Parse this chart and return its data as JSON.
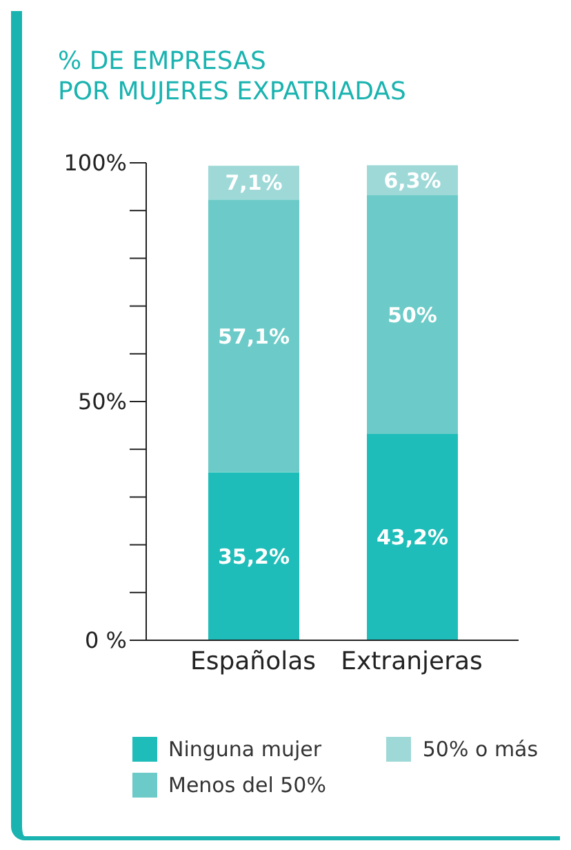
{
  "chart_data": {
    "type": "bar",
    "title": "% DE EMPRESAS\nPOR MUJERES EXPATRIADAS",
    "categories": [
      "Españolas",
      "Extranjeras"
    ],
    "stacked": true,
    "series": [
      {
        "name": "Ninguna mujer",
        "color": "#1fbdb9",
        "values": [
          35.2,
          43.2
        ],
        "value_labels": [
          "35,2%",
          "43,2%"
        ]
      },
      {
        "name": "Menos del 50%",
        "color": "#6ccbc8",
        "values": [
          57.1,
          50
        ],
        "value_labels": [
          "57,1%",
          "50%"
        ]
      },
      {
        "name": "50% o más",
        "color": "#9ed9d8",
        "values": [
          7.1,
          6.3
        ],
        "value_labels": [
          "7,1%",
          "6,3%"
        ]
      }
    ],
    "ylim": [
      0,
      100
    ],
    "yticks": [
      {
        "value": 0,
        "label": "0 %"
      },
      {
        "value": 10,
        "label": null
      },
      {
        "value": 20,
        "label": null
      },
      {
        "value": 30,
        "label": null
      },
      {
        "value": 40,
        "label": null
      },
      {
        "value": 50,
        "label": "50%"
      },
      {
        "value": 60,
        "label": null
      },
      {
        "value": 70,
        "label": null
      },
      {
        "value": 80,
        "label": null
      },
      {
        "value": 90,
        "label": null
      },
      {
        "value": 100,
        "label": "100%"
      }
    ],
    "grid": false,
    "legend": "bottom"
  }
}
